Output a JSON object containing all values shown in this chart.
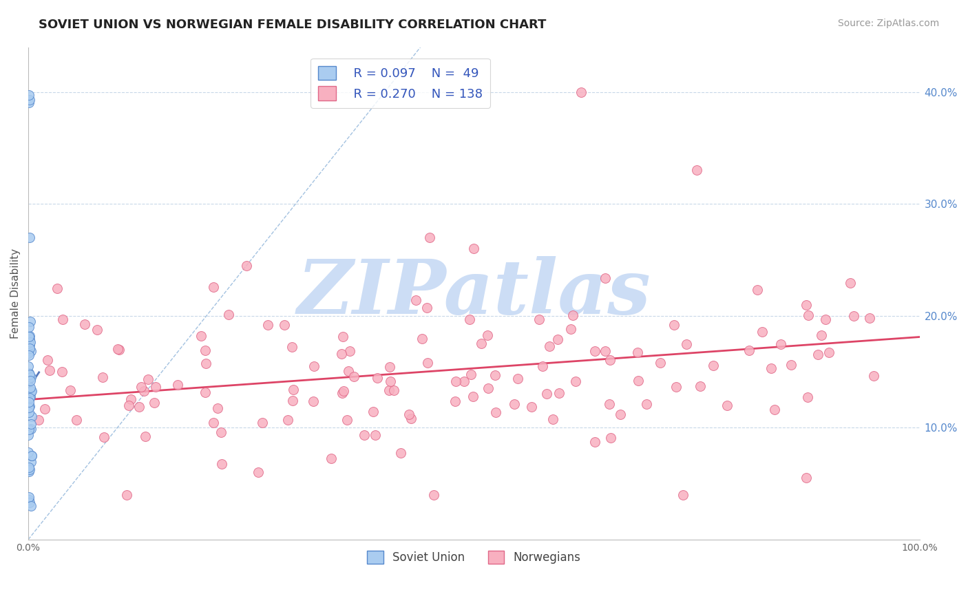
{
  "title": "SOVIET UNION VS NORWEGIAN FEMALE DISABILITY CORRELATION CHART",
  "source_text": "Source: ZipAtlas.com",
  "ylabel": "Female Disability",
  "xlim": [
    0.0,
    1.0
  ],
  "ylim": [
    0.0,
    0.44
  ],
  "x_ticks": [
    0.0,
    0.1,
    0.2,
    0.3,
    0.4,
    0.5,
    0.6,
    0.7,
    0.8,
    0.9,
    1.0
  ],
  "x_tick_labels": [
    "0.0%",
    "",
    "",
    "",
    "",
    "",
    "",
    "",
    "",
    "",
    "100.0%"
  ],
  "y_ticks_right": [
    0.1,
    0.2,
    0.3,
    0.4
  ],
  "y_tick_labels_right": [
    "10.0%",
    "20.0%",
    "30.0%",
    "40.0%"
  ],
  "soviet_color": "#aaccf0",
  "soviet_edge_color": "#5588cc",
  "norwegian_color": "#f8b0c0",
  "norwegian_edge_color": "#e06888",
  "trend_soviet_color": "#5577bb",
  "trend_norwegian_color": "#dd4466",
  "diagonal_color": "#99bbdd",
  "legend_R1": "R = 0.097",
  "legend_N1": "N =  49",
  "legend_R2": "R = 0.270",
  "legend_N2": "N = 138",
  "legend_label1": "Soviet Union",
  "legend_label2": "Norwegians",
  "watermark": "ZIPatlas",
  "watermark_color": "#ccddf5",
  "title_color": "#222222",
  "source_color": "#999999",
  "ylabel_color": "#555555",
  "tick_color": "#5588cc",
  "grid_color": "#c8d8e8",
  "axis_color": "#bbbbbb",
  "legend_text_color": "#3355bb",
  "bottom_tick_color": "#666666",
  "norwegian_trend_intercept": 0.125,
  "norwegian_trend_slope": 0.056,
  "soviet_trend_intercept": 0.135,
  "soviet_trend_slope": 1.2
}
